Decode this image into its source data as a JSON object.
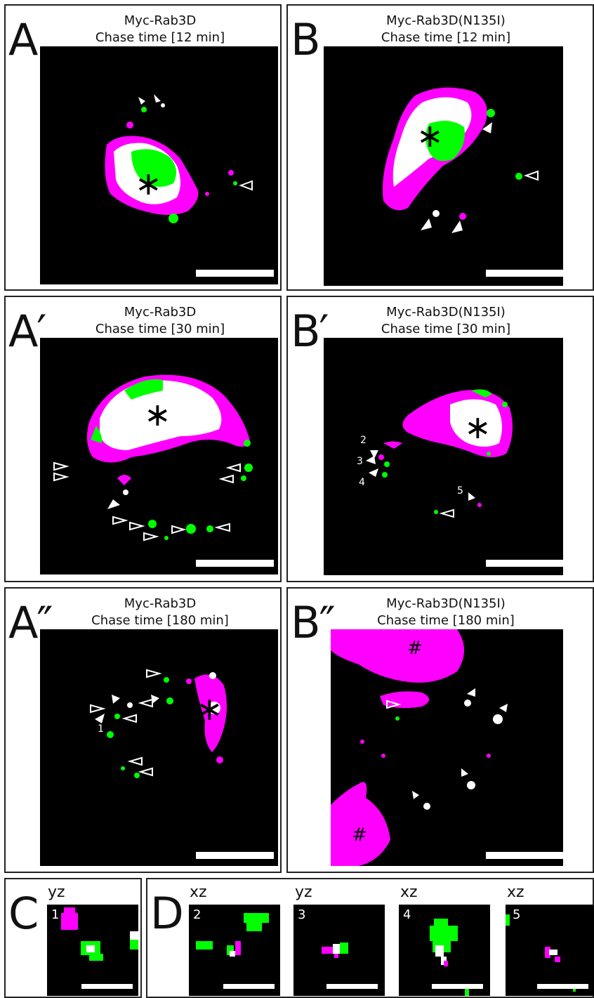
{
  "panels": {
    "A": {
      "letter": "A",
      "line1": "Myc-Rab3D",
      "line2": "Chase time [12 min]"
    },
    "B": {
      "letter": "B",
      "line1": "Myc-Rab3D(N135I)",
      "line2": "Chase time [12 min]"
    },
    "A1": {
      "letter": "A′",
      "line1": "Myc-Rab3D",
      "line2": "Chase time [30 min]"
    },
    "B1": {
      "letter": "B′",
      "line1": "Myc-Rab3D(N135I)",
      "line2": "Chase time [30 min]"
    },
    "A2": {
      "letter": "A″",
      "line1": "Myc-Rab3D",
      "line2": "Chase time [180 min]"
    },
    "B2": {
      "letter": "B″",
      "line1": "Myc-Rab3D(N135I)",
      "line2": "Chase time [180 min]"
    }
  },
  "bottom": {
    "C": {
      "letter": "C",
      "views": [
        {
          "orient": "yz",
          "num": "1"
        }
      ]
    },
    "D": {
      "letter": "D",
      "views": [
        {
          "orient": "xz",
          "num": "2"
        },
        {
          "orient": "yz",
          "num": "3"
        },
        {
          "orient": "xz",
          "num": "4"
        },
        {
          "orient": "xz",
          "num": "5"
        }
      ]
    }
  },
  "symbols": {
    "asterisk": "∗",
    "hash": "#"
  },
  "labels": {
    "b1": [
      "2",
      "3",
      "4",
      "5"
    ],
    "a2": [
      "1"
    ]
  },
  "colors": {
    "magenta": "#ff00ff",
    "green": "#00ff00",
    "white": "#ffffff",
    "background": "#000000"
  }
}
